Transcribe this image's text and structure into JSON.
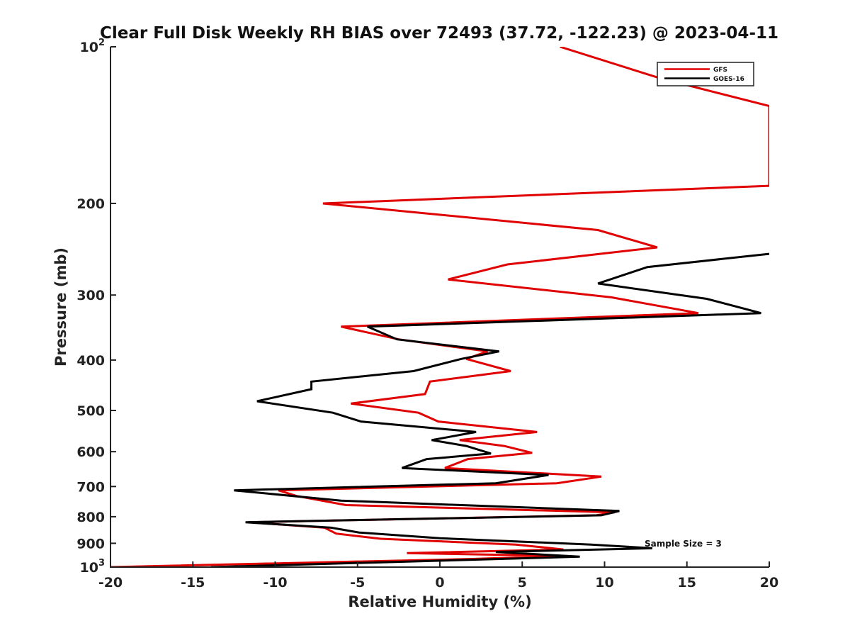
{
  "chart_data": {
    "type": "line",
    "orientation": "vertical-profile",
    "title": "Clear Full Disk Weekly RH BIAS over 72493 (37.72, -122.23) @ 2023-04-11",
    "xlabel": "Relative Humidity (%)",
    "ylabel": "Pressure (mb)",
    "xlim": [
      -20,
      20
    ],
    "ylim": [
      100,
      1000
    ],
    "y_scale": "log",
    "y_reversed": true,
    "x_ticks": [
      -20,
      -15,
      -10,
      -5,
      0,
      5,
      10,
      15,
      20
    ],
    "x_tick_labels": [
      "-20",
      "-15",
      "-10",
      "-5",
      "0",
      "5",
      "10",
      "15",
      "20"
    ],
    "y_ticks": [
      100,
      200,
      300,
      400,
      500,
      600,
      700,
      800,
      900,
      1000
    ],
    "y_tick_labels": [
      {
        "base": "10",
        "sup": "2"
      },
      {
        "base": "200"
      },
      {
        "base": "300"
      },
      {
        "base": "400"
      },
      {
        "base": "500"
      },
      {
        "base": "600"
      },
      {
        "base": "700"
      },
      {
        "base": "800"
      },
      {
        "base": "900"
      },
      {
        "base": "10",
        "sup": "3"
      }
    ],
    "grid": false,
    "legend_position": "top-right",
    "annotation": "Sample Size = 3",
    "series": [
      {
        "name": "GFS",
        "color": "#e00000",
        "points": [
          [
            7.3,
            100
          ],
          [
            13.4,
            115
          ],
          [
            20,
            130
          ],
          [
            20,
            185
          ],
          [
            -7.1,
            200
          ],
          [
            9.6,
            225
          ],
          [
            13.2,
            243
          ],
          [
            4.1,
            262
          ],
          [
            0.5,
            280
          ],
          [
            10.4,
            303
          ],
          [
            15.7,
            325
          ],
          [
            -6.0,
            345
          ],
          [
            -2.5,
            365
          ],
          [
            2.9,
            385
          ],
          [
            1.6,
            398
          ],
          [
            4.3,
            420
          ],
          [
            -0.6,
            440
          ],
          [
            -0.9,
            465
          ],
          [
            -5.4,
            485
          ],
          [
            -1.3,
            505
          ],
          [
            -0.1,
            525
          ],
          [
            5.9,
            550
          ],
          [
            1.2,
            570
          ],
          [
            3.9,
            585
          ],
          [
            5.6,
            603
          ],
          [
            1.7,
            620
          ],
          [
            0.3,
            645
          ],
          [
            9.8,
            670
          ],
          [
            7.1,
            690
          ],
          [
            -9.8,
            712
          ],
          [
            -8.7,
            730
          ],
          [
            -5.7,
            760
          ],
          [
            10.6,
            785
          ],
          [
            9.5,
            795
          ],
          [
            -11.6,
            820
          ],
          [
            -7.0,
            840
          ],
          [
            -6.3,
            862
          ],
          [
            -3.6,
            882
          ],
          [
            4.6,
            905
          ],
          [
            7.5,
            925
          ],
          [
            -2.0,
            940
          ],
          [
            7.6,
            952
          ],
          [
            1.8,
            965
          ],
          [
            -20,
            1000
          ]
        ]
      },
      {
        "name": "GOES-16",
        "color": "#000000",
        "points": [
          [
            20,
            250
          ],
          [
            12.6,
            265
          ],
          [
            9.6,
            285
          ],
          [
            16.2,
            305
          ],
          [
            19.5,
            325
          ],
          [
            -4.4,
            345
          ],
          [
            -2.6,
            365
          ],
          [
            3.6,
            385
          ],
          [
            1.3,
            398
          ],
          [
            -1.6,
            420
          ],
          [
            -7.8,
            440
          ],
          [
            -7.8,
            455
          ],
          [
            -11.1,
            480
          ],
          [
            -6.5,
            505
          ],
          [
            -4.8,
            525
          ],
          [
            2.2,
            550
          ],
          [
            -0.5,
            570
          ],
          [
            1.6,
            585
          ],
          [
            3.1,
            605
          ],
          [
            -0.8,
            620
          ],
          [
            -2.3,
            645
          ],
          [
            6.6,
            665
          ],
          [
            3.4,
            690
          ],
          [
            -12.5,
            712
          ],
          [
            -6.0,
            745
          ],
          [
            10.9,
            780
          ],
          [
            9.8,
            795
          ],
          [
            -11.8,
            820
          ],
          [
            -6.6,
            840
          ],
          [
            -4.9,
            858
          ],
          [
            0.0,
            880
          ],
          [
            9.2,
            905
          ],
          [
            12.9,
            920
          ],
          [
            3.4,
            935
          ],
          [
            8.5,
            955
          ],
          [
            -13.9,
            1000
          ]
        ]
      }
    ]
  }
}
